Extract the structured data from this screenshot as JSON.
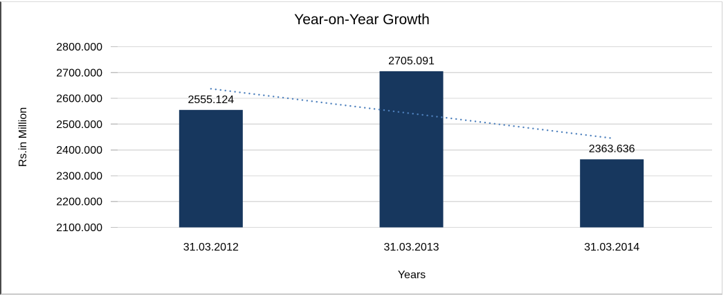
{
  "chart_data": {
    "type": "bar",
    "title": "Year-on-Year Growth",
    "xlabel": "Years",
    "ylabel": "Rs.in Million",
    "categories": [
      "31.03.2012",
      "31.03.2013",
      "31.03.2014"
    ],
    "values": [
      2555.124,
      2705.091,
      2363.636
    ],
    "data_labels": [
      "2555.124",
      "2705.091",
      "2363.636"
    ],
    "ylim": [
      2100,
      2800
    ],
    "ytick_step": 100,
    "ytick_decimals": 3,
    "grid": "horizontal",
    "legend": "none",
    "trendline": {
      "type": "linear",
      "style": "dotted",
      "start_value": 2637.0,
      "end_value": 2445.5,
      "color": "#4F81BD"
    },
    "colors": {
      "bar": "#17375E",
      "gridline": "#D9D9D9",
      "tick": "#BFBFBF",
      "text": "#000000",
      "background": "#FFFFFF"
    }
  }
}
